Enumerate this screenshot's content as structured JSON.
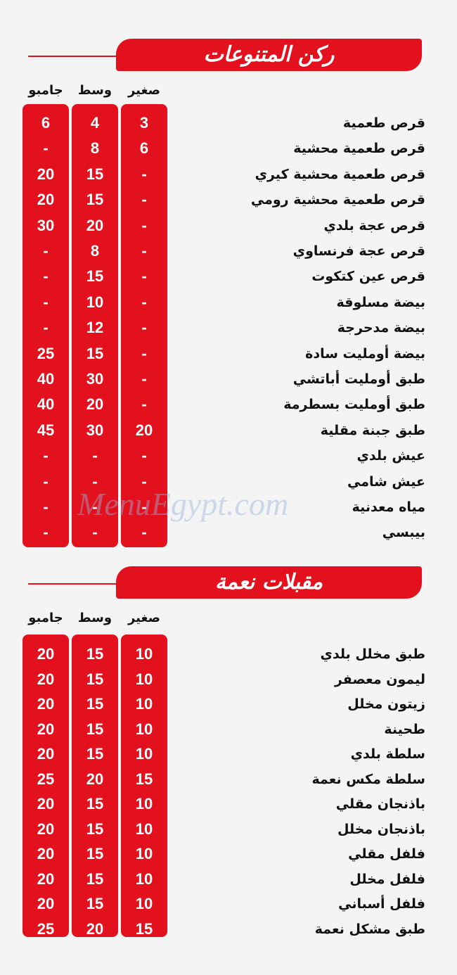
{
  "sections": [
    {
      "title": "ركن المتنوعات",
      "columns": {
        "small": "صغير",
        "medium": "وسط",
        "jumbo": "جامبو"
      },
      "rows": [
        {
          "name": "قرص طعمية",
          "small": "3",
          "medium": "4",
          "jumbo": "6"
        },
        {
          "name": "قرص طعمية محشية",
          "small": "6",
          "medium": "8",
          "jumbo": "-"
        },
        {
          "name": "قرص طعمية محشية كيري",
          "small": "-",
          "medium": "15",
          "jumbo": "20"
        },
        {
          "name": "قرص طعمية محشية رومي",
          "small": "-",
          "medium": "15",
          "jumbo": "20"
        },
        {
          "name": "قرص عجة بلدي",
          "small": "-",
          "medium": "20",
          "jumbo": "30"
        },
        {
          "name": "قرص عجة فرنساوي",
          "small": "-",
          "medium": "8",
          "jumbo": "-"
        },
        {
          "name": "قرص عين كتكوت",
          "small": "-",
          "medium": "15",
          "jumbo": "-"
        },
        {
          "name": "بيضة مسلوقة",
          "small": "-",
          "medium": "10",
          "jumbo": "-"
        },
        {
          "name": "بيضة مدحرجة",
          "small": "-",
          "medium": "12",
          "jumbo": "-"
        },
        {
          "name": "بيضة أومليت سادة",
          "small": "-",
          "medium": "15",
          "jumbo": "25"
        },
        {
          "name": "طبق أومليت أباتشي",
          "small": "-",
          "medium": "30",
          "jumbo": "40"
        },
        {
          "name": "طبق أومليت بسطرمة",
          "small": "-",
          "medium": "20",
          "jumbo": "40"
        },
        {
          "name": "طبق جبنة مقلية",
          "small": "20",
          "medium": "30",
          "jumbo": "45"
        },
        {
          "name": "عيش بلدي",
          "small": "-",
          "medium": "-",
          "jumbo": "-"
        },
        {
          "name": "عيش شامي",
          "small": "-",
          "medium": "-",
          "jumbo": "-"
        },
        {
          "name": "مياه معدنية",
          "small": "-",
          "medium": "-",
          "jumbo": "-"
        },
        {
          "name": "بيبسي",
          "small": "-",
          "medium": "-",
          "jumbo": "-"
        }
      ]
    },
    {
      "title": "مقبلات نعمة",
      "columns": {
        "small": "صغير",
        "medium": "وسط",
        "jumbo": "جامبو"
      },
      "rows": [
        {
          "name": "طبق مخلل بلدي",
          "small": "10",
          "medium": "15",
          "jumbo": "20"
        },
        {
          "name": "ليمون معصفر",
          "small": "10",
          "medium": "15",
          "jumbo": "20"
        },
        {
          "name": "زيتون مخلل",
          "small": "10",
          "medium": "15",
          "jumbo": "20"
        },
        {
          "name": "طحينة",
          "small": "10",
          "medium": "15",
          "jumbo": "20"
        },
        {
          "name": "سلطة بلدي",
          "small": "10",
          "medium": "15",
          "jumbo": "20"
        },
        {
          "name": "سلطة مكس نعمة",
          "small": "15",
          "medium": "20",
          "jumbo": "25"
        },
        {
          "name": "باذنجان مقلي",
          "small": "10",
          "medium": "15",
          "jumbo": "20"
        },
        {
          "name": "باذنجان مخلل",
          "small": "10",
          "medium": "15",
          "jumbo": "20"
        },
        {
          "name": "فلفل مقلي",
          "small": "10",
          "medium": "15",
          "jumbo": "20"
        },
        {
          "name": "فلفل مخلل",
          "small": "10",
          "medium": "15",
          "jumbo": "20"
        },
        {
          "name": "فلفل أسباني",
          "small": "10",
          "medium": "15",
          "jumbo": "20"
        },
        {
          "name": "طبق مشكل نعمة",
          "small": "15",
          "medium": "20",
          "jumbo": "25"
        }
      ]
    }
  ],
  "watermark": "MenuEgypt.com"
}
